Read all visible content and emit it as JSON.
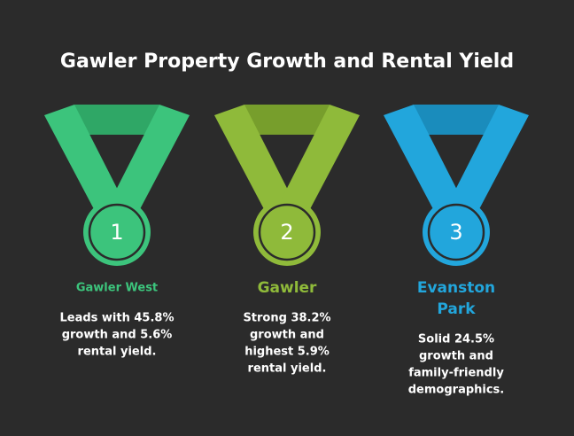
{
  "title": "Gawler Property Growth and Rental Yield",
  "medals": [
    {
      "rank": "1",
      "name_lines": [
        "Gawler West"
      ],
      "description_lines": [
        "Leads with 45.8%",
        "growth and 5.6%",
        "rental yield."
      ],
      "color": "#3cc47c",
      "shade": "#2fa766"
    },
    {
      "rank": "2",
      "name_lines": [
        "Gawler"
      ],
      "description_lines": [
        "Strong 38.2%",
        "growth and",
        "highest 5.9%",
        "rental yield."
      ],
      "color": "#8fba3a",
      "shade": "#779e2c"
    },
    {
      "rank": "3",
      "name_lines": [
        "Evanston",
        "Park"
      ],
      "description_lines": [
        "Solid 24.5%",
        "growth and",
        "family-friendly",
        "demographics."
      ],
      "color": "#22a6dc",
      "shade": "#1a8cbc"
    }
  ]
}
